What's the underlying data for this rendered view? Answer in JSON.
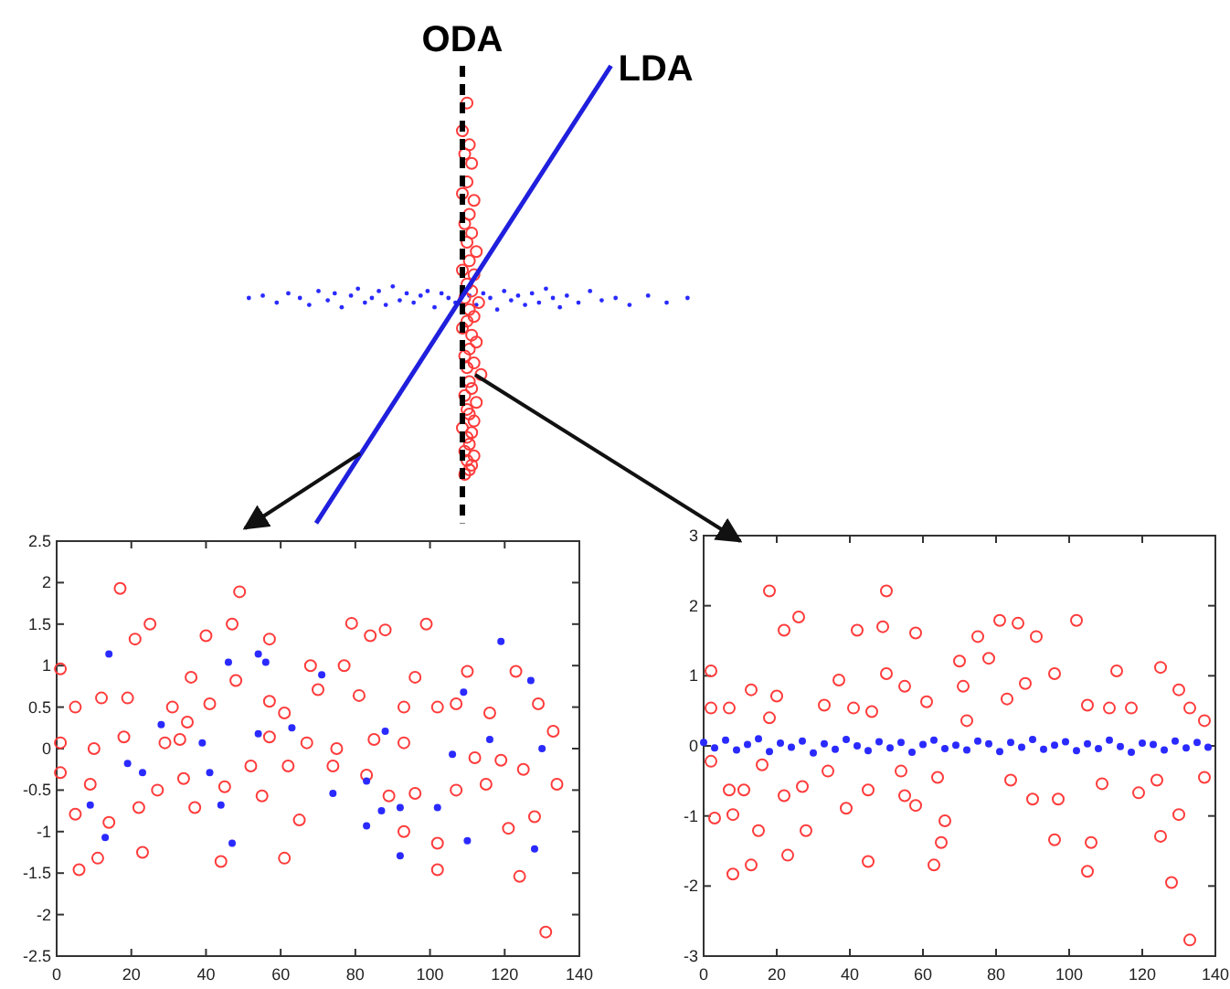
{
  "chart_data": [
    {
      "type": "other",
      "annotations": [
        "ODA",
        "LDA"
      ]
    },
    {
      "type": "scatter",
      "xlim": [
        0,
        140
      ],
      "xticks": [
        0,
        20,
        40,
        60,
        80,
        100,
        120,
        140
      ],
      "ylim": [
        -2.5,
        2.5
      ],
      "yticks": [
        -2.5,
        -2,
        -1.5,
        -1,
        -0.5,
        0,
        0.5,
        1,
        1.5,
        2,
        2.5
      ],
      "series": [
        {
          "color": "#ff3b3b",
          "marker": "circle",
          "x": [
            17,
            49,
            21,
            25,
            40,
            47,
            57,
            79,
            84,
            88,
            99,
            1,
            36,
            48,
            68,
            77,
            96,
            110,
            123,
            5,
            12,
            19,
            31,
            35,
            41,
            57,
            61,
            70,
            81,
            93,
            102,
            107,
            116,
            129,
            133,
            1,
            10,
            18,
            29,
            33,
            57,
            67,
            75,
            85,
            93,
            112,
            119,
            125,
            1,
            9,
            27,
            34,
            52,
            62,
            74,
            83,
            89,
            96,
            107,
            115,
            134,
            55,
            45,
            5,
            14,
            22,
            37,
            65,
            93,
            102,
            121,
            128,
            6,
            11,
            23,
            44,
            61,
            102,
            124,
            131
          ],
          "values": [
            1.93,
            1.89,
            1.32,
            1.5,
            1.36,
            1.5,
            1.32,
            1.51,
            1.36,
            1.43,
            1.5,
            0.96,
            0.86,
            0.82,
            1.0,
            1.0,
            0.86,
            0.93,
            0.93,
            0.5,
            0.61,
            0.61,
            0.5,
            0.32,
            0.54,
            0.57,
            0.43,
            0.71,
            0.64,
            0.5,
            0.5,
            0.54,
            0.43,
            0.54,
            0.21,
            0.07,
            0,
            0.14,
            0.07,
            0.11,
            0.14,
            0.07,
            0,
            0.11,
            0.07,
            -0.11,
            -0.14,
            -0.25,
            -0.29,
            -0.43,
            -0.5,
            -0.36,
            -0.21,
            -0.21,
            -0.21,
            -0.32,
            -0.57,
            -0.54,
            -0.5,
            -0.43,
            -0.43,
            -0.57,
            -0.46,
            -0.79,
            -0.89,
            -0.71,
            -0.71,
            -0.86,
            -1.0,
            -1.14,
            -0.96,
            -0.82,
            -1.46,
            -1.32,
            -1.25,
            -1.36,
            -1.32,
            -1.46,
            -1.54,
            -2.21
          ]
        },
        {
          "color": "#2a2aff",
          "marker": "circle",
          "x": [
            14,
            46,
            56,
            54,
            71,
            109,
            119,
            127,
            28,
            39,
            54,
            63,
            88,
            106,
            116,
            130,
            19,
            23,
            41,
            74,
            83,
            87,
            92,
            102,
            9,
            44,
            83,
            110,
            128,
            92,
            47,
            13
          ],
          "values": [
            1.14,
            1.04,
            1.04,
            1.14,
            0.89,
            0.68,
            1.29,
            0.82,
            0.29,
            0.07,
            0.18,
            0.25,
            0.21,
            -0.07,
            0.11,
            0,
            -0.18,
            -0.29,
            -0.29,
            -0.54,
            -0.39,
            -0.75,
            -0.71,
            -0.71,
            -0.68,
            -0.68,
            -0.93,
            -1.11,
            -1.21,
            -1.29,
            -1.14,
            -1.07
          ]
        }
      ]
    },
    {
      "type": "scatter",
      "xlim": [
        0,
        140
      ],
      "xticks": [
        0,
        20,
        40,
        60,
        80,
        100,
        120,
        140
      ],
      "ylim": [
        -3,
        3
      ],
      "yticks": [
        -3,
        -2,
        -1,
        0,
        1,
        2,
        3
      ],
      "series": [
        {
          "color": "#ff3b3b",
          "marker": "circle",
          "x": [
            2,
            18,
            22,
            26,
            42,
            49,
            50,
            58,
            70,
            75,
            81,
            86,
            91,
            102,
            78,
            2,
            7,
            13,
            18,
            20,
            33,
            37,
            41,
            46,
            50,
            55,
            61,
            71,
            72,
            83,
            88,
            96,
            105,
            111,
            113,
            117,
            125,
            130,
            133,
            137,
            2,
            7,
            11,
            16,
            22,
            27,
            34,
            39,
            45,
            54,
            55,
            58,
            64,
            84,
            90,
            97,
            109,
            119,
            124,
            137,
            3,
            8,
            15,
            28,
            66,
            65,
            96,
            106,
            125,
            130,
            8,
            13,
            23,
            45,
            63,
            105,
            128,
            133
          ],
          "values": [
            1.07,
            2.21,
            1.65,
            1.84,
            1.65,
            1.7,
            2.21,
            1.61,
            1.21,
            1.56,
            1.79,
            1.75,
            1.56,
            1.79,
            1.25,
            0.54,
            0.54,
            0.8,
            0.4,
            0.71,
            0.58,
            0.94,
            0.54,
            0.49,
            1.03,
            0.85,
            0.63,
            0.85,
            0.36,
            0.67,
            0.89,
            1.03,
            0.58,
            0.54,
            1.07,
            0.54,
            1.12,
            0.8,
            0.54,
            0.36,
            -0.22,
            -0.63,
            -0.63,
            -0.27,
            -0.71,
            -0.58,
            -0.36,
            -0.89,
            -0.63,
            -0.36,
            -0.71,
            -0.85,
            -0.45,
            -0.49,
            -0.76,
            -0.76,
            -0.54,
            -0.67,
            -0.49,
            -0.45,
            -1.03,
            -0.98,
            -1.21,
            -1.21,
            -1.07,
            -1.38,
            -1.34,
            -1.38,
            -1.29,
            -0.98,
            -1.83,
            -1.7,
            -1.56,
            -1.65,
            -1.7,
            -1.79,
            -1.95,
            -2.77
          ]
        },
        {
          "color": "#2a2aff",
          "marker": "circle",
          "x": [
            0,
            3,
            6,
            9,
            12,
            15,
            18,
            21,
            24,
            27,
            30,
            33,
            36,
            39,
            42,
            45,
            48,
            51,
            54,
            57,
            60,
            63,
            66,
            69,
            72,
            75,
            78,
            81,
            84,
            87,
            90,
            93,
            96,
            99,
            102,
            105,
            108,
            111,
            114,
            117,
            120,
            123,
            126,
            129,
            132,
            135,
            138
          ],
          "values": [
            0.05,
            -0.03,
            0.08,
            -0.06,
            0.02,
            0.1,
            -0.08,
            0.04,
            -0.02,
            0.07,
            -0.1,
            0.03,
            -0.05,
            0.09,
            0.0,
            -0.07,
            0.06,
            -0.03,
            0.05,
            -0.09,
            0.02,
            0.08,
            -0.04,
            0.01,
            -0.06,
            0.07,
            0.03,
            -0.08,
            0.05,
            -0.02,
            0.09,
            -0.05,
            0.01,
            0.06,
            -0.07,
            0.03,
            -0.04,
            0.08,
            -0.01,
            -0.09,
            0.04,
            0.02,
            -0.06,
            0.07,
            -0.03,
            0.05,
            -0.02
          ]
        }
      ]
    }
  ]
}
